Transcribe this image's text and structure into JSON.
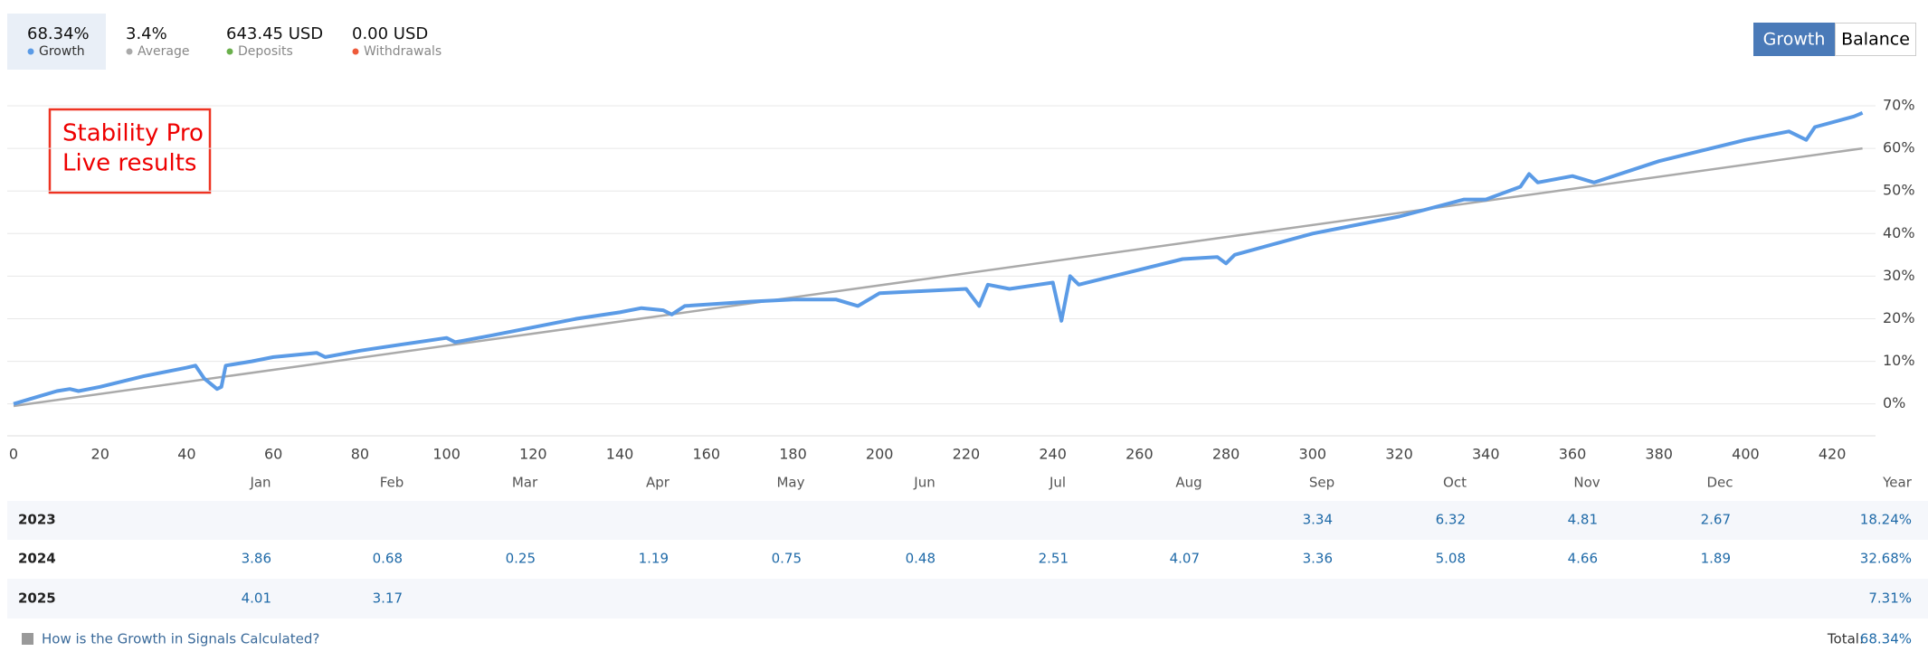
{
  "stats": [
    {
      "value": "68.34%",
      "label": "Growth",
      "color": "#5b9be6"
    },
    {
      "value": "3.4%",
      "label": "Average",
      "color": "#aaaaaa"
    },
    {
      "value": "643.45 USD",
      "label": "Deposits",
      "color": "#6ab04c"
    },
    {
      "value": "0.00 USD",
      "label": "Withdrawals",
      "color": "#ee5a3a"
    }
  ],
  "toggle": [
    "Growth",
    "Balance"
  ],
  "annotation": [
    "Stability Pro",
    "Live results"
  ],
  "chart_data": {
    "type": "line",
    "series": [
      {
        "name": "Growth",
        "color": "#5b9be6",
        "x": [
          0,
          5,
          10,
          13,
          15,
          20,
          30,
          40,
          42,
          44,
          47,
          48,
          49,
          55,
          60,
          70,
          72,
          80,
          90,
          100,
          102,
          110,
          120,
          130,
          140,
          145,
          150,
          152,
          155,
          170,
          180,
          190,
          195,
          200,
          210,
          220,
          223,
          225,
          230,
          240,
          242,
          244,
          246,
          250,
          260,
          270,
          278,
          280,
          282,
          300,
          320,
          335,
          340,
          348,
          350,
          352,
          360,
          365,
          380,
          400,
          410,
          414,
          416,
          425,
          427
        ],
        "values": [
          0,
          1.5,
          3,
          3.5,
          3,
          4,
          6.5,
          8.5,
          9,
          6,
          3.5,
          4,
          9,
          10,
          11,
          12,
          11,
          12.5,
          14,
          15.5,
          14.5,
          16,
          18,
          20,
          21.5,
          22.5,
          22,
          21,
          23,
          24,
          24.5,
          24.5,
          23,
          26,
          26.5,
          27,
          23,
          28,
          27,
          28.5,
          19.5,
          30,
          28,
          29,
          31.5,
          34,
          34.5,
          33,
          35,
          40,
          44,
          48,
          48,
          51,
          54,
          52,
          53.5,
          52,
          57,
          62,
          64,
          62,
          65,
          67.5,
          68.34
        ]
      },
      {
        "name": "Average",
        "color": "#aaaaaa",
        "x": [
          0,
          427
        ],
        "values": [
          -0.5,
          60
        ]
      }
    ],
    "xlim": [
      0,
      430
    ],
    "ylim": [
      -7.5,
      70
    ],
    "xticks": [
      0,
      20,
      40,
      60,
      80,
      100,
      120,
      140,
      160,
      180,
      200,
      220,
      240,
      260,
      280,
      300,
      320,
      340,
      360,
      380,
      400,
      420
    ],
    "yticks": [
      {
        "value": 0,
        "label": "0%"
      },
      {
        "value": 10,
        "label": "10%"
      },
      {
        "value": 20,
        "label": "20%"
      },
      {
        "value": 30,
        "label": "30%"
      },
      {
        "value": 40,
        "label": "40%"
      },
      {
        "value": 50,
        "label": "50%"
      },
      {
        "value": 60,
        "label": "60%"
      },
      {
        "value": 70,
        "label": "70%"
      }
    ],
    "grid": true
  },
  "table": {
    "columns": [
      "Jan",
      "Feb",
      "Mar",
      "Apr",
      "May",
      "Jun",
      "Jul",
      "Aug",
      "Sep",
      "Oct",
      "Nov",
      "Dec",
      "Year"
    ],
    "rows": [
      {
        "year": "2023",
        "values": [
          null,
          null,
          null,
          null,
          null,
          null,
          null,
          null,
          3.34,
          6.32,
          4.81,
          2.67
        ],
        "total": "18.24%"
      },
      {
        "year": "2024",
        "values": [
          3.86,
          0.68,
          0.25,
          1.19,
          0.75,
          0.48,
          2.51,
          4.07,
          3.36,
          5.08,
          4.66,
          1.89
        ],
        "total": "32.68%"
      },
      {
        "year": "2025",
        "values": [
          4.01,
          3.17,
          null,
          null,
          null,
          null,
          null,
          null,
          null,
          null,
          null,
          null
        ],
        "total": "7.31%"
      }
    ]
  },
  "footer": {
    "link": "How is the Growth in Signals Calculated?",
    "total_label": "Total:",
    "total_value": "68.34%"
  }
}
